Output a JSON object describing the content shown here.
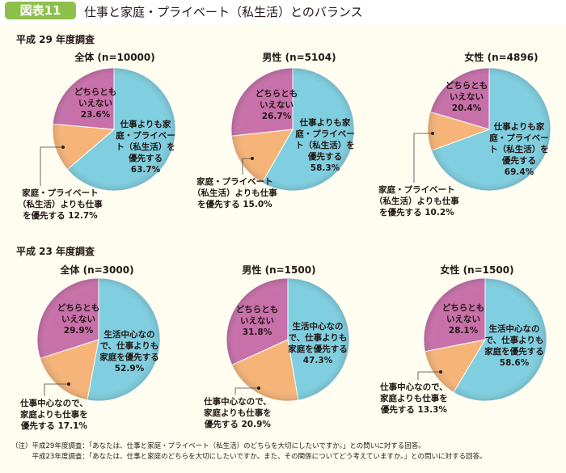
{
  "header": {
    "badge": "図表11",
    "title": "仕事と家庭・プライベート（私生活）とのバランス",
    "accent": "#8cc04a"
  },
  "colors": {
    "blue": "#7fcfe0",
    "orange": "#f6b478",
    "purple": "#c870aa",
    "background": "#fefdf0"
  },
  "sections": [
    {
      "label": "平成 29 年度調査"
    },
    {
      "label": "平成 23 年度調査"
    }
  ],
  "chart_data": [
    {
      "type": "pie",
      "title": "全体 (n=10000)",
      "slices": [
        {
          "label": [
            "仕事よりも家",
            "庭・プライベー",
            "ト（私生活）を",
            "優先する"
          ],
          "value": 63.7,
          "color": "blue"
        },
        {
          "label": [
            "家庭・プライベート",
            "（私生活）よりも仕事",
            "を優先する"
          ],
          "value": 12.7,
          "color": "orange"
        },
        {
          "label": [
            "どちらとも",
            "いえない"
          ],
          "value": 23.6,
          "color": "purple"
        }
      ]
    },
    {
      "type": "pie",
      "title": "男性 (n=5104)",
      "slices": [
        {
          "label": [
            "仕事よりも家",
            "庭・プライベー",
            "ト（私生活）を",
            "優先する"
          ],
          "value": 58.3,
          "color": "blue"
        },
        {
          "label": [
            "家庭・プライベート",
            "（私生活）よりも仕事",
            "を優先する"
          ],
          "value": 15.0,
          "color": "orange"
        },
        {
          "label": [
            "どちらとも",
            "いえない"
          ],
          "value": 26.7,
          "color": "purple"
        }
      ]
    },
    {
      "type": "pie",
      "title": "女性 (n=4896)",
      "slices": [
        {
          "label": [
            "仕事よりも家",
            "庭・プライベー",
            "ト（私生活）を",
            "優先する"
          ],
          "value": 69.4,
          "color": "blue"
        },
        {
          "label": [
            "家庭・プライベート",
            "（私生活）よりも仕事",
            "を優先する"
          ],
          "value": 10.2,
          "color": "orange"
        },
        {
          "label": [
            "どちらとも",
            "いえない"
          ],
          "value": 20.4,
          "color": "purple"
        }
      ]
    },
    {
      "type": "pie",
      "title": "全体 (n=3000)",
      "slices": [
        {
          "label": [
            "生活中心なの",
            "で、仕事よりも",
            "家庭を優先する"
          ],
          "value": 52.9,
          "color": "blue"
        },
        {
          "label": [
            "仕事中心なので、",
            "家庭よりも仕事を",
            "優先する"
          ],
          "value": 17.1,
          "color": "orange"
        },
        {
          "label": [
            "どちらとも",
            "いえない"
          ],
          "value": 29.9,
          "color": "purple"
        }
      ]
    },
    {
      "type": "pie",
      "title": "男性 (n=1500)",
      "slices": [
        {
          "label": [
            "生活中心なの",
            "で、仕事よりも",
            "家庭を優先する"
          ],
          "value": 47.3,
          "color": "blue"
        },
        {
          "label": [
            "仕事中心なので、",
            "家庭よりも仕事を",
            "優先する"
          ],
          "value": 20.9,
          "color": "orange"
        },
        {
          "label": [
            "どちらとも",
            "いえない"
          ],
          "value": 31.8,
          "color": "purple"
        }
      ]
    },
    {
      "type": "pie",
      "title": "女性 (n=1500)",
      "slices": [
        {
          "label": [
            "生活中心なの",
            "で、仕事よりも",
            "家庭を優先する"
          ],
          "value": 58.6,
          "color": "blue"
        },
        {
          "label": [
            "仕事中心なので、",
            "家庭よりも仕事を",
            "優先する"
          ],
          "value": 13.3,
          "color": "orange"
        },
        {
          "label": [
            "どちらとも",
            "いえない"
          ],
          "value": 28.1,
          "color": "purple"
        }
      ]
    }
  ],
  "notes": [
    "（注）平成29年度調査：「あなたは、仕事と家庭・プライベート（私生活）のどちらを大切にしたいですか。」との問いに対する回答。",
    "　　　平成23年度調査：「あなたは、仕事と家庭のどちらを大切にしたいですか。また、その関係についてどう考えていますか。」との問いに対する回答。"
  ]
}
